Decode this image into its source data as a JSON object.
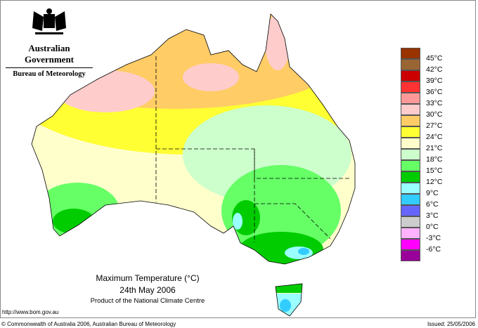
{
  "header": {
    "government": "Australian Government",
    "bureau": "Bureau of Meteorology",
    "crest_text": "Commonwealth Coat of Arms"
  },
  "map": {
    "title": "Maximum Temperature (°C)",
    "date": "24th May 2006",
    "product": "Product of the National Climate Centre",
    "url": "http://www.bom.gov.au"
  },
  "legend": {
    "swatches": [
      {
        "color": "#993300"
      },
      {
        "color": "#996633"
      },
      {
        "color": "#cc0000"
      },
      {
        "color": "#ff3333"
      },
      {
        "color": "#ff9999"
      },
      {
        "color": "#ffcccc"
      },
      {
        "color": "#ffcc66"
      },
      {
        "color": "#ffff33"
      },
      {
        "color": "#ffffcc"
      },
      {
        "color": "#ccffcc"
      },
      {
        "color": "#66ff66"
      },
      {
        "color": "#00cc00"
      },
      {
        "color": "#99ffff"
      },
      {
        "color": "#33ccff"
      },
      {
        "color": "#6666ff"
      },
      {
        "color": "#cccccc"
      },
      {
        "color": "#ffb3ff"
      },
      {
        "color": "#ff00ff"
      },
      {
        "color": "#990099"
      }
    ],
    "labels": [
      "45°C",
      "42°C",
      "39°C",
      "36°C",
      "33°C",
      "30°C",
      "27°C",
      "24°C",
      "21°C",
      "18°C",
      "15°C",
      "12°C",
      "9°C",
      "6°C",
      "3°C",
      "0°C",
      "-3°C",
      "-6°C"
    ]
  },
  "footer": {
    "copyright": "© Commonwealth of Australia 2006, Australian Bureau of Meteorology",
    "issued": "Issued: 25/05/2006"
  }
}
